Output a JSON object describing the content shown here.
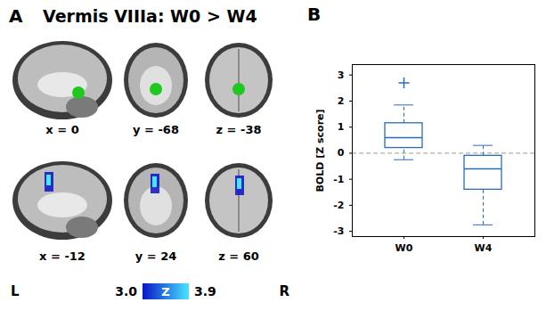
{
  "panels": {
    "A": {
      "label": "A",
      "title": "Vermis VIIIa: W0 > W4",
      "views": [
        {
          "label": "x = 0"
        },
        {
          "label": "y = -68"
        },
        {
          "label": "z = -38"
        },
        {
          "label": "x = -12"
        },
        {
          "label": "y = 24"
        },
        {
          "label": "z = 60"
        }
      ],
      "side_labels": [
        "L",
        "R"
      ],
      "colorbar": {
        "label": "Z",
        "range": [
          3.0,
          3.9
        ],
        "ticks": [
          {
            "value": 3,
            "label": "3.0"
          },
          3.9
        ],
        "colors": [
          "#0a14c8",
          "#46e6ff"
        ]
      }
    },
    "B": {
      "label": "B"
    }
  },
  "chart_data": {
    "type": "box",
    "categories": [
      "W0",
      "W4"
    ],
    "ylabel": "BOLD [Z score]",
    "ylim": [
      -3.2,
      3.4
    ],
    "yticks": [
      -3,
      -2,
      -1,
      0,
      1,
      2,
      3
    ],
    "color": "#2a6cb8",
    "reference_line": 0,
    "boxes": [
      {
        "whisker_low": -0.25,
        "q1": 0.2,
        "median": 0.6,
        "q3": 1.15,
        "whisker_high": 1.85,
        "outliers": [
          2.7
        ]
      },
      {
        "whisker_low": -2.75,
        "q1": -1.4,
        "median": -0.6,
        "q3": -0.1,
        "whisker_high": 0.3,
        "outliers": []
      }
    ]
  }
}
